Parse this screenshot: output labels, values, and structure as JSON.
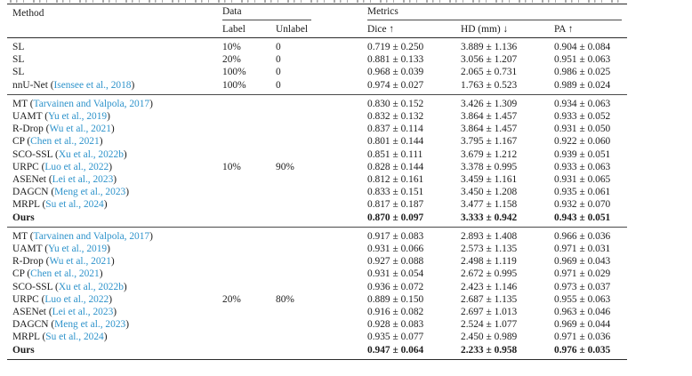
{
  "colors": {
    "text": "#1c1c1c",
    "citation_link": "#2e93cb",
    "rule": "#2b2b2b",
    "background": "#ffffff"
  },
  "table": {
    "header": {
      "method": "Method",
      "data_group": "Data",
      "metrics_group": "Metrics",
      "label": "Label",
      "unlabel": "Unlabel",
      "dice": "Dice ↑",
      "hd": "HD (mm) ↓",
      "pa": "PA ↑"
    },
    "sections": [
      {
        "rows": [
          {
            "method": "SL",
            "label": "10%",
            "unlabel": "0",
            "dice": "0.719 ± 0.250",
            "hd": "3.889 ± 1.136",
            "pa": "0.904 ± 0.084",
            "bold": false
          },
          {
            "method": "SL",
            "label": "20%",
            "unlabel": "0",
            "dice": "0.881 ± 0.133",
            "hd": "3.056 ± 1.207",
            "pa": "0.951 ± 0.063",
            "bold": false
          },
          {
            "method": "SL",
            "label": "100%",
            "unlabel": "0",
            "dice": "0.968 ± 0.039",
            "hd": "2.065 ± 0.731",
            "pa": "0.986 ± 0.025",
            "bold": false
          },
          {
            "method": "nnU-Net",
            "cite": "Isensee et al., 2018",
            "label": "100%",
            "unlabel": "0",
            "dice": "0.974 ± 0.027",
            "hd": "1.763 ± 0.523",
            "pa": "0.989 ± 0.024",
            "bold": false
          }
        ]
      },
      {
        "shared": {
          "label": "10%",
          "unlabel": "90%",
          "row_index": 5
        },
        "rows": [
          {
            "method": "MT",
            "cite": "Tarvainen and Valpola, 2017",
            "dice": "0.830 ± 0.152",
            "hd": "3.426 ± 1.309",
            "pa": "0.934 ± 0.063",
            "bold": false
          },
          {
            "method": "UAMT",
            "cite": "Yu et al., 2019",
            "dice": "0.832 ± 0.132",
            "hd": "3.864 ± 1.457",
            "pa": "0.933 ± 0.052",
            "bold": false
          },
          {
            "method": "R-Drop",
            "cite": "Wu et al., 2021",
            "dice": "0.837 ± 0.114",
            "hd": "3.864 ± 1.457",
            "pa": "0.931 ± 0.050",
            "bold": false
          },
          {
            "method": "CP",
            "cite": "Chen et al., 2021",
            "dice": "0.801 ± 0.144",
            "hd": "3.795 ± 1.167",
            "pa": "0.922 ± 0.060",
            "bold": false
          },
          {
            "method": "SCO-SSL",
            "cite": "Xu et al., 2022b",
            "dice": "0.851 ± 0.111",
            "hd": "3.679 ± 1.212",
            "pa": "0.939 ± 0.051",
            "bold": false
          },
          {
            "method": "URPC",
            "cite": "Luo et al., 2022",
            "dice": "0.828 ± 0.144",
            "hd": "3.378 ± 0.995",
            "pa": "0.933 ± 0.063",
            "bold": false
          },
          {
            "method": "ASENet",
            "cite": "Lei et al., 2023",
            "dice": "0.812 ± 0.161",
            "hd": "3.459 ± 1.161",
            "pa": "0.931 ± 0.065",
            "bold": false
          },
          {
            "method": "DAGCN",
            "cite": "Meng et al., 2023",
            "dice": "0.833 ± 0.151",
            "hd": "3.450 ± 1.208",
            "pa": "0.935 ± 0.061",
            "bold": false
          },
          {
            "method": "MRPL",
            "cite": "Su et al., 2024",
            "dice": "0.817 ± 0.187",
            "hd": "3.477 ± 1.158",
            "pa": "0.932 ± 0.070",
            "bold": false
          },
          {
            "method": "Ours",
            "dice": "0.870 ± 0.097",
            "hd": "3.333 ± 0.942",
            "pa": "0.943 ± 0.051",
            "bold": true
          }
        ]
      },
      {
        "shared": {
          "label": "20%",
          "unlabel": "80%",
          "row_index": 5
        },
        "rows": [
          {
            "method": "MT",
            "cite": "Tarvainen and Valpola, 2017",
            "dice": "0.917 ± 0.083",
            "hd": "2.893 ± 1.408",
            "pa": "0.966 ± 0.036",
            "bold": false
          },
          {
            "method": "UAMT",
            "cite": "Yu et al., 2019",
            "dice": "0.931 ± 0.066",
            "hd": "2.573 ± 1.135",
            "pa": "0.971 ± 0.031",
            "bold": false
          },
          {
            "method": "R-Drop",
            "cite": "Wu et al., 2021",
            "dice": "0.927 ± 0.088",
            "hd": "2.498 ± 1.119",
            "pa": "0.969 ± 0.043",
            "bold": false
          },
          {
            "method": "CP",
            "cite": "Chen et al., 2021",
            "dice": "0.931 ± 0.054",
            "hd": "2.672 ± 0.995",
            "pa": "0.971 ± 0.029",
            "bold": false
          },
          {
            "method": "SCO-SSL",
            "cite": "Xu et al., 2022b",
            "dice": "0.936 ± 0.072",
            "hd": "2.423 ± 1.146",
            "pa": "0.973 ± 0.037",
            "bold": false
          },
          {
            "method": "URPC",
            "cite": "Luo et al., 2022",
            "dice": "0.889 ± 0.150",
            "hd": "2.687 ± 1.135",
            "pa": "0.955 ± 0.063",
            "bold": false
          },
          {
            "method": "ASENet",
            "cite": "Lei et al., 2023",
            "dice": "0.916 ± 0.082",
            "hd": "2.697 ± 1.013",
            "pa": "0.963 ± 0.046",
            "bold": false
          },
          {
            "method": "DAGCN",
            "cite": "Meng et al., 2023",
            "dice": "0.928 ± 0.083",
            "hd": "2.524 ± 1.077",
            "pa": "0.969 ± 0.044",
            "bold": false
          },
          {
            "method": "MRPL",
            "cite": "Su et al., 2024",
            "dice": "0.935 ± 0.077",
            "hd": "2.450 ± 0.989",
            "pa": "0.971 ± 0.036",
            "bold": false
          },
          {
            "method": "Ours",
            "dice": "0.947 ± 0.064",
            "hd": "2.233 ± 0.958",
            "pa": "0.976 ± 0.035",
            "bold": true
          }
        ]
      }
    ]
  }
}
